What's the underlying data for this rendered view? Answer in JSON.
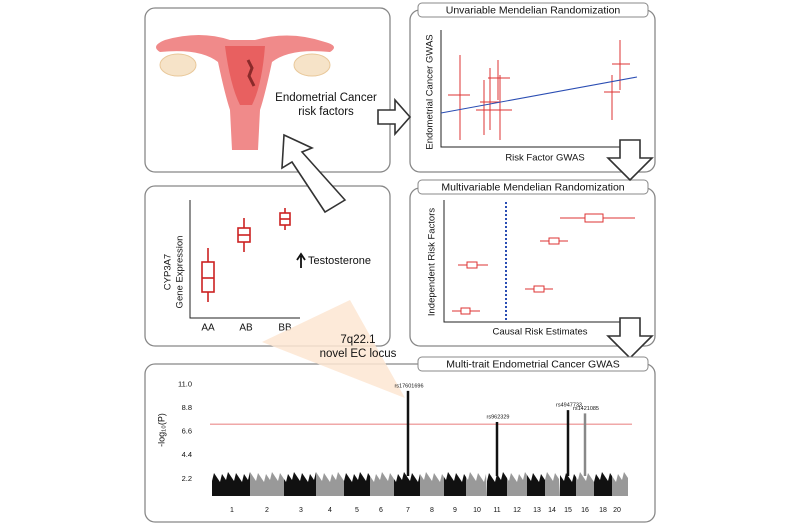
{
  "risk_panel": {
    "label_lines": [
      "Endometrial Cancer",
      "risk factors"
    ]
  },
  "univariable_mr": {
    "title": "Unvariable Mendelian Randomization",
    "y_label": "Endometrial Cancer GWAS",
    "x_label": "Risk Factor GWAS"
  },
  "expression_panel": {
    "y_label_lines": [
      "CYP3A7",
      "Gene Expression"
    ],
    "categories": [
      "AA",
      "AB",
      "BB"
    ],
    "annotation": "Testosterone"
  },
  "multivariable_mr": {
    "title": "Multivariable Mendelian Randomization",
    "y_label": "Independent Risk Factors",
    "x_label": "Causal Risk Estimates"
  },
  "callout": {
    "lines": [
      "7q22.1",
      "novel EC locus"
    ]
  },
  "gwas": {
    "title": "Multi-trait Endometrial Cancer GWAS",
    "y_label": "-log₁₀(P)",
    "ylim": [
      0.6,
      11.6
    ],
    "yticks": [
      11.0,
      8.8,
      6.6,
      4.4,
      2.2
    ],
    "significance_line": 7.3,
    "chromosomes": [
      "1",
      "2",
      "3",
      "4",
      "5",
      "6",
      "7",
      "8",
      "9",
      "10",
      "11",
      "12",
      "13",
      "14",
      "15",
      "16",
      "18",
      "20"
    ],
    "snps": [
      {
        "label": "rs17601696",
        "chromosome": "7",
        "peak": 10.4
      },
      {
        "label": "rs962329",
        "chromosome": "11",
        "peak": 7.5
      },
      {
        "label": "rs4947733",
        "chromosome": "15",
        "peak": 8.6
      },
      {
        "label": "rs1421085",
        "chromosome": "16",
        "peak": 8.3
      }
    ]
  }
}
